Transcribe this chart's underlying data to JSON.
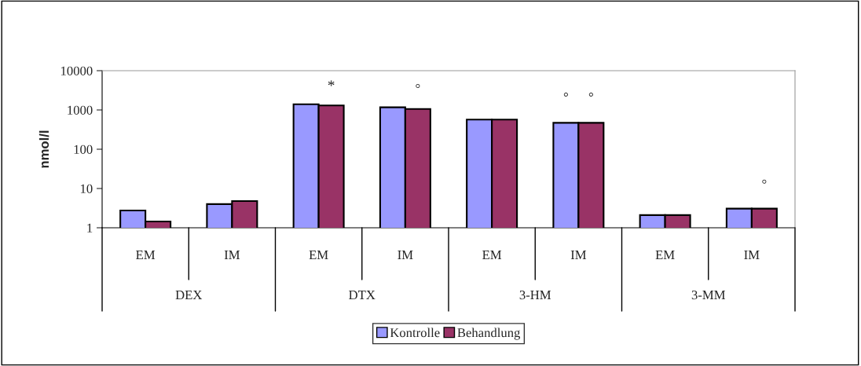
{
  "chart_data": {
    "type": "bar",
    "ylabel": "nmol/l",
    "categories": [
      "EM",
      "IM",
      "EM",
      "IM",
      "EM",
      "IM",
      "EM",
      "IM"
    ],
    "series": [
      {
        "name": "Kontrolle",
        "color": "#9999ff",
        "values": [
          2.75,
          4.0,
          1400,
          1170,
          567,
          471,
          2.1,
          3.07
        ]
      },
      {
        "name": "Behandlung",
        "color": "#993366",
        "values": [
          1.45,
          4.8,
          1300,
          1060,
          567,
          471,
          2.1,
          3.07
        ]
      }
    ],
    "log": "y",
    "ylim": [
      1,
      10000
    ],
    "yticks": [
      1,
      10,
      100,
      1000,
      10000
    ],
    "grid": false,
    "legend": "bottom",
    "annotations": [
      "*",
      "°",
      "°",
      "°",
      "°",
      "DEX",
      "DTX",
      "3-HM",
      "3-MM"
    ]
  }
}
